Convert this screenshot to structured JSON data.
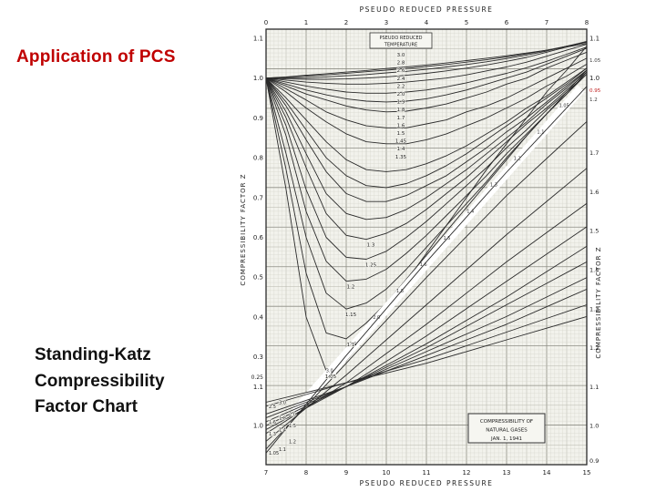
{
  "slide": {
    "title": "Application of PCS",
    "title_color": "#c00000",
    "caption_lines": [
      "Standing-Katz",
      "Compressibility",
      "Factor Chart"
    ]
  },
  "chart_data": {
    "type": "line",
    "title": "Standing-Katz Compressibility Factor Chart",
    "title_top": "PSEUDO REDUCED PRESSURE",
    "title_bottom": "PSEUDO REDUCED PRESSURE",
    "ylabel_left": "COMPRESSIBILITY FACTOR Z",
    "ylabel_right": "COMPRESSIBILITY FACTOR Z",
    "temperature_header": [
      "PSEUDO REDUCED",
      "TEMPERATURE"
    ],
    "temperature_column": [
      "3.0",
      "2.8",
      "2.6",
      "2.4",
      "2.2",
      "2.0",
      "1.9",
      "1.8",
      "1.7",
      "1.6",
      "1.5",
      "1.45",
      "1.4",
      "1.35"
    ],
    "annotation_box": [
      "COMPRESSIBILITY OF",
      "NATURAL GASES",
      "JAN. 1, 1941"
    ],
    "right_side_small_labels": [
      {
        "text": "1.05",
        "color": "#3a3a3a"
      },
      {
        "text": "0.95",
        "color": "#c02020"
      },
      {
        "text": "1.2",
        "color": "#3a3a3a"
      }
    ],
    "grid": true,
    "main_chart": {
      "x_axis": {
        "position": "top",
        "range": [
          0,
          8
        ],
        "ticks": [
          "0",
          "1",
          "2",
          "3",
          "4",
          "5",
          "6",
          "7",
          "8"
        ]
      },
      "y_axis_left": {
        "range": [
          0.25,
          1.1
        ],
        "ticks": [
          "1.1",
          "1.0",
          "0.9",
          "0.8",
          "0.7",
          "0.6",
          "0.5",
          "0.4",
          "0.3",
          "0.25"
        ]
      },
      "y_axis_right_ticks": [
        "1.1",
        "1.0"
      ],
      "x": [
        0,
        0.5,
        1,
        1.5,
        2,
        2.5,
        3,
        3.5,
        4,
        4.5,
        5,
        5.5,
        6,
        6.5,
        7,
        7.5,
        8
      ],
      "series": [
        {
          "name": "1.05",
          "values": [
            1.0,
            0.72,
            0.4,
            0.265,
            0.29,
            0.35,
            0.42,
            0.49,
            0.56,
            0.63,
            0.7,
            0.77,
            0.835,
            0.9,
            0.965,
            1.02,
            1.08
          ]
        },
        {
          "name": "1.1",
          "values": [
            1.0,
            0.77,
            0.51,
            0.36,
            0.345,
            0.385,
            0.435,
            0.495,
            0.555,
            0.615,
            0.675,
            0.735,
            0.795,
            0.855,
            0.91,
            0.965,
            1.02
          ]
        },
        {
          "name": "1.15",
          "values": [
            1.0,
            0.81,
            0.6,
            0.46,
            0.42,
            0.435,
            0.47,
            0.52,
            0.575,
            0.63,
            0.685,
            0.74,
            0.8,
            0.855,
            0.91,
            0.96,
            1.015
          ]
        },
        {
          "name": "1.2",
          "values": [
            1.0,
            0.855,
            0.665,
            0.54,
            0.49,
            0.495,
            0.52,
            0.56,
            0.605,
            0.655,
            0.705,
            0.755,
            0.81,
            0.86,
            0.91,
            0.96,
            1.01
          ]
        },
        {
          "name": "1.25",
          "values": [
            1.0,
            0.88,
            0.72,
            0.6,
            0.55,
            0.545,
            0.565,
            0.6,
            0.64,
            0.685,
            0.73,
            0.775,
            0.825,
            0.87,
            0.92,
            0.965,
            1.01
          ]
        },
        {
          "name": "1.3",
          "values": [
            1.0,
            0.9,
            0.775,
            0.66,
            0.605,
            0.595,
            0.61,
            0.635,
            0.67,
            0.71,
            0.75,
            0.795,
            0.84,
            0.885,
            0.925,
            0.97,
            1.015
          ]
        },
        {
          "name": "1.35",
          "values": [
            1.0,
            0.915,
            0.81,
            0.71,
            0.66,
            0.645,
            0.65,
            0.67,
            0.7,
            0.735,
            0.77,
            0.81,
            0.85,
            0.89,
            0.935,
            0.975,
            1.02
          ]
        },
        {
          "name": "1.4",
          "values": [
            1.0,
            0.93,
            0.845,
            0.765,
            0.71,
            0.69,
            0.69,
            0.705,
            0.73,
            0.755,
            0.79,
            0.825,
            0.865,
            0.9,
            0.94,
            0.98,
            1.02
          ]
        },
        {
          "name": "1.45",
          "values": [
            1.0,
            0.94,
            0.87,
            0.8,
            0.755,
            0.73,
            0.725,
            0.735,
            0.755,
            0.78,
            0.81,
            0.845,
            0.88,
            0.915,
            0.95,
            0.985,
            1.025
          ]
        },
        {
          "name": "1.5",
          "values": [
            1.0,
            0.95,
            0.895,
            0.84,
            0.795,
            0.77,
            0.765,
            0.77,
            0.785,
            0.805,
            0.83,
            0.86,
            0.89,
            0.925,
            0.955,
            0.99,
            1.025
          ]
        },
        {
          "name": "1.6",
          "values": [
            1.0,
            0.965,
            0.925,
            0.89,
            0.86,
            0.84,
            0.835,
            0.835,
            0.845,
            0.86,
            0.88,
            0.9,
            0.925,
            0.95,
            0.98,
            1.005,
            1.035
          ]
        },
        {
          "name": "1.7",
          "values": [
            1.0,
            0.973,
            0.945,
            0.915,
            0.895,
            0.88,
            0.875,
            0.875,
            0.885,
            0.895,
            0.915,
            0.93,
            0.95,
            0.975,
            1.0,
            1.025,
            1.05
          ]
        },
        {
          "name": "1.8",
          "values": [
            1.0,
            0.98,
            0.96,
            0.945,
            0.93,
            0.92,
            0.915,
            0.917,
            0.925,
            0.935,
            0.95,
            0.965,
            0.985,
            1.0,
            1.025,
            1.045,
            1.065
          ]
        },
        {
          "name": "1.9",
          "values": [
            1.0,
            0.985,
            0.97,
            0.958,
            0.948,
            0.942,
            0.94,
            0.942,
            0.948,
            0.958,
            0.97,
            0.985,
            1.0,
            1.015,
            1.035,
            1.055,
            1.075
          ]
        },
        {
          "name": "2.0",
          "values": [
            1.0,
            0.99,
            0.98,
            0.972,
            0.965,
            0.962,
            0.962,
            0.965,
            0.97,
            0.978,
            0.988,
            1.0,
            1.012,
            1.026,
            1.042,
            1.06,
            1.078
          ]
        },
        {
          "name": "2.2",
          "values": [
            1.0,
            0.995,
            0.99,
            0.987,
            0.985,
            0.985,
            0.987,
            0.99,
            0.995,
            1.0,
            1.008,
            1.018,
            1.028,
            1.04,
            1.055,
            1.07,
            1.085
          ]
        },
        {
          "name": "2.4",
          "values": [
            1.0,
            0.998,
            0.997,
            0.997,
            0.998,
            1.0,
            1.003,
            1.007,
            1.012,
            1.018,
            1.025,
            1.033,
            1.042,
            1.052,
            1.065,
            1.078,
            1.092
          ]
        },
        {
          "name": "2.6",
          "values": [
            1.0,
            1.0,
            1.001,
            1.003,
            1.006,
            1.009,
            1.013,
            1.017,
            1.022,
            1.028,
            1.034,
            1.041,
            1.049,
            1.058,
            1.068,
            1.08,
            1.092
          ]
        },
        {
          "name": "2.8",
          "values": [
            1.0,
            1.002,
            1.005,
            1.008,
            1.012,
            1.016,
            1.02,
            1.024,
            1.029,
            1.034,
            1.04,
            1.046,
            1.053,
            1.061,
            1.07,
            1.08,
            1.09
          ]
        },
        {
          "name": "3.0",
          "values": [
            1.0,
            1.003,
            1.007,
            1.011,
            1.015,
            1.019,
            1.024,
            1.028,
            1.033,
            1.038,
            1.044,
            1.05,
            1.056,
            1.063,
            1.07,
            1.078,
            1.087
          ]
        }
      ]
    },
    "insert_chart": {
      "x_axis": {
        "position": "bottom",
        "range": [
          7,
          15
        ],
        "ticks": [
          "7",
          "8",
          "9",
          "10",
          "11",
          "12",
          "13",
          "14",
          "15"
        ]
      },
      "y_axis_right": {
        "range": [
          0.9,
          1.8
        ],
        "ticks": [
          "1.7",
          "1.6",
          "1.5",
          "1.4",
          "1.3",
          "1.2",
          "1.1",
          "1.0",
          "0.9"
        ]
      },
      "y_axis_left_ticks": [
        "1.1",
        "1.0"
      ],
      "x": [
        7,
        8,
        9,
        10,
        11,
        12,
        13,
        14,
        15
      ],
      "series": [
        {
          "name": "1.05",
          "values": [
            0.93,
            1.055,
            1.18,
            1.3,
            1.42,
            1.535,
            1.65,
            1.76,
            1.87
          ]
        },
        {
          "name": "1.1",
          "values": [
            0.94,
            1.05,
            1.16,
            1.27,
            1.38,
            1.485,
            1.59,
            1.685,
            1.78
          ]
        },
        {
          "name": "1.2",
          "values": [
            0.96,
            1.045,
            1.13,
            1.22,
            1.31,
            1.4,
            1.49,
            1.575,
            1.66
          ]
        },
        {
          "name": "1.3",
          "values": [
            0.98,
            1.045,
            1.11,
            1.185,
            1.26,
            1.34,
            1.42,
            1.495,
            1.57
          ]
        },
        {
          "name": "1.4",
          "values": [
            0.99,
            1.045,
            1.1,
            1.165,
            1.23,
            1.3,
            1.37,
            1.44,
            1.51
          ]
        },
        {
          "name": "1.5",
          "values": [
            1.0,
            1.05,
            1.1,
            1.155,
            1.21,
            1.27,
            1.33,
            1.395,
            1.46
          ]
        },
        {
          "name": "1.6",
          "values": [
            1.01,
            1.055,
            1.1,
            1.15,
            1.2,
            1.255,
            1.31,
            1.365,
            1.42
          ]
        },
        {
          "name": "1.8",
          "values": [
            1.02,
            1.06,
            1.1,
            1.145,
            1.19,
            1.235,
            1.28,
            1.33,
            1.38
          ]
        },
        {
          "name": "2.0",
          "values": [
            1.03,
            1.065,
            1.1,
            1.14,
            1.18,
            1.22,
            1.26,
            1.305,
            1.35
          ]
        },
        {
          "name": "2.5",
          "values": [
            1.05,
            1.08,
            1.11,
            1.14,
            1.17,
            1.205,
            1.24,
            1.275,
            1.31
          ]
        },
        {
          "name": "3.0",
          "values": [
            1.06,
            1.085,
            1.11,
            1.135,
            1.16,
            1.19,
            1.22,
            1.25,
            1.28
          ]
        }
      ]
    }
  }
}
